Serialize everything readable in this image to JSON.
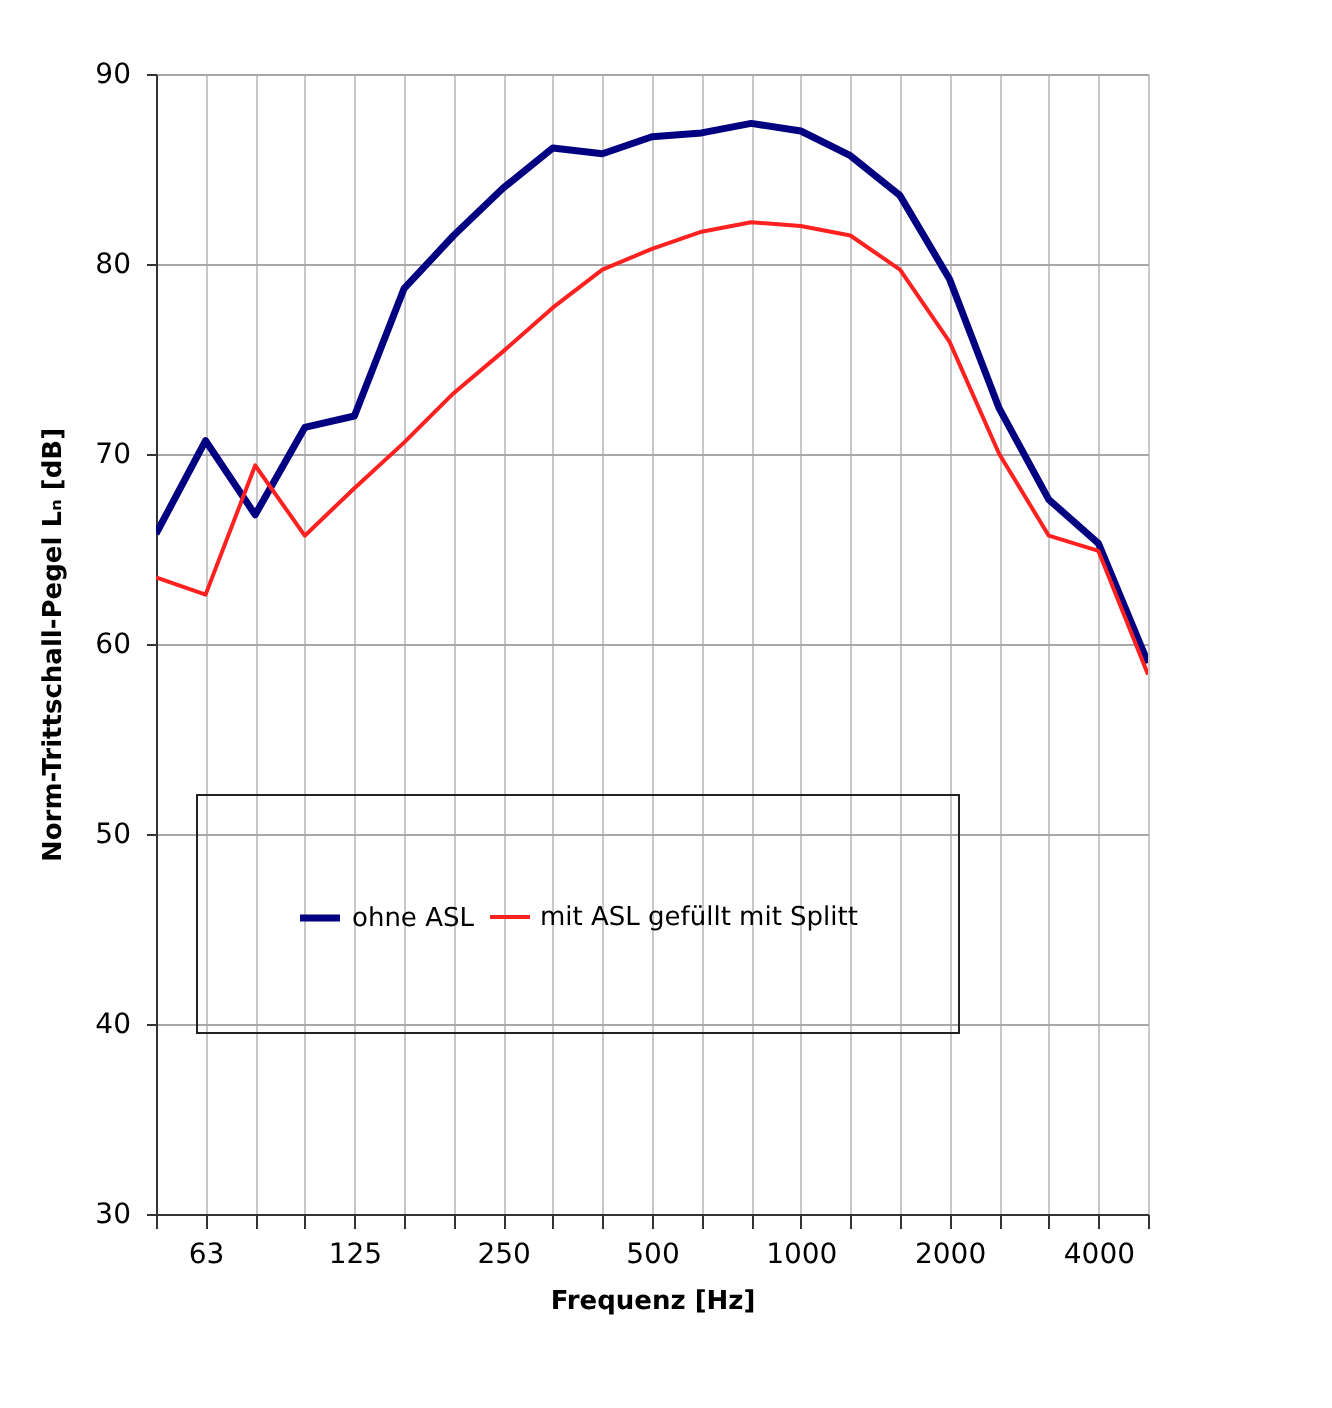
{
  "chart_data": {
    "type": "line",
    "xlabel": "Frequenz [Hz]",
    "ylabel": "Norm-Trittschall-Pegel Lₙ [dB]",
    "categories": [
      null,
      "63",
      null,
      null,
      "125",
      null,
      null,
      "250",
      null,
      null,
      "500",
      null,
      null,
      "1000",
      null,
      null,
      "2000",
      null,
      null,
      "4000",
      null
    ],
    "series": [
      {
        "name": "ohne ASL",
        "color": "#000080",
        "values": [
          65.8,
          70.7,
          66.8,
          71.4,
          72,
          78.7,
          81.5,
          84,
          86.1,
          85.8,
          86.7,
          86.9,
          87.4,
          87,
          85.7,
          83.6,
          79.2,
          72.4,
          67.6,
          65.3,
          59
        ]
      },
      {
        "name": "mit ASL gefüllt mit Splitt",
        "color": "#ff2020",
        "values": [
          63.5,
          62.6,
          69.4,
          65.7,
          68.2,
          70.6,
          73.2,
          75.4,
          77.7,
          79.7,
          80.8,
          81.7,
          82.2,
          82,
          81.5,
          79.7,
          75.9,
          70,
          65.7,
          64.9,
          58.4
        ]
      }
    ],
    "ylim": [
      30,
      90
    ],
    "yticks": [
      30,
      40,
      50,
      60,
      70,
      80,
      90
    ],
    "grid": true,
    "legend": "bottom left",
    "marker": "none",
    "line_style": "solid"
  }
}
